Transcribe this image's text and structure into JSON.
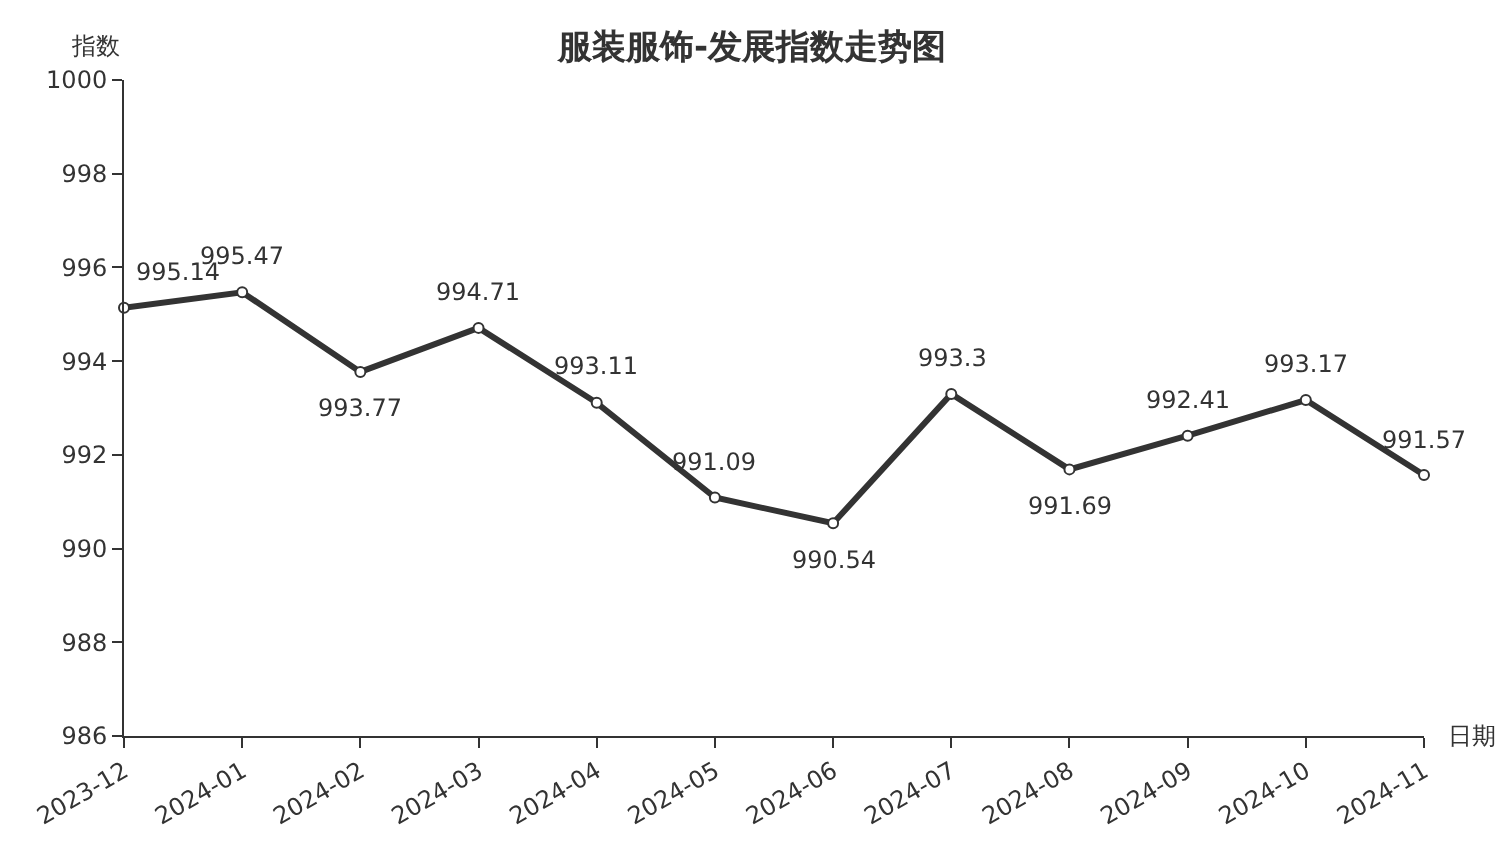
{
  "chart_data": {
    "type": "line",
    "title": "服装服饰-发展指数走势图",
    "xlabel": "日期",
    "ylabel": "指数",
    "categories": [
      "2023-12",
      "2024-01",
      "2024-02",
      "2024-03",
      "2024-04",
      "2024-05",
      "2024-06",
      "2024-07",
      "2024-08",
      "2024-09",
      "2024-10",
      "2024-11"
    ],
    "series": [
      {
        "color": "#333333",
        "values": [
          995.14,
          995.47,
          993.77,
          994.71,
          993.11,
          991.09,
          990.54,
          993.3,
          991.69,
          992.41,
          993.17,
          991.57
        ]
      }
    ],
    "ylim": [
      986,
      1000
    ],
    "yticks": [
      986,
      988,
      990,
      992,
      994,
      996,
      998,
      1000
    ],
    "legend": false,
    "marker": "circle",
    "line_style": "solid",
    "data_labels": true
  }
}
